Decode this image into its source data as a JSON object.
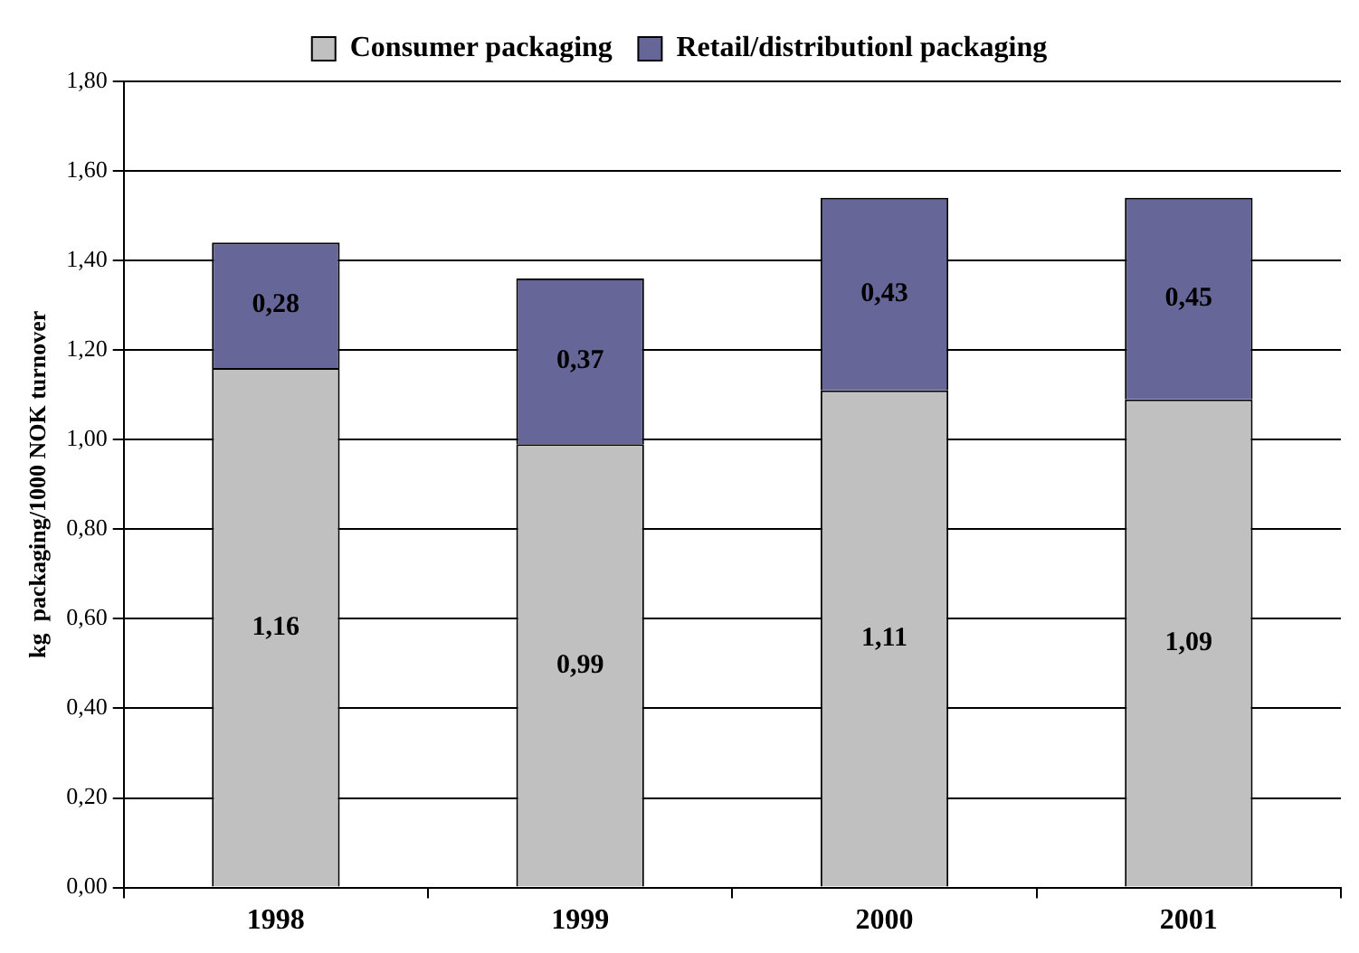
{
  "chart_data": {
    "type": "bar",
    "stacked": true,
    "ylabel": "kg  packaging/1000 NOK turnover",
    "categories": [
      "1998",
      "1999",
      "2000",
      "2001"
    ],
    "series": [
      {
        "name": "Consumer packaging",
        "color": "#c0c0c0",
        "values": [
          1.16,
          0.99,
          1.11,
          1.09
        ],
        "value_labels": [
          "1,16",
          "0,99",
          "1,11",
          "1,09"
        ]
      },
      {
        "name": "Retail/distributionl packaging",
        "color": "#666699",
        "values": [
          0.28,
          0.37,
          0.43,
          0.45
        ],
        "value_labels": [
          "0,28",
          "0,37",
          "0,43",
          "0,45"
        ]
      }
    ],
    "ylim": [
      0,
      1.8
    ],
    "yticks": [
      {
        "value": 0,
        "label": "0,00"
      },
      {
        "value": 0.2,
        "label": "0,20"
      },
      {
        "value": 0.4,
        "label": "0,40"
      },
      {
        "value": 0.6,
        "label": "0,60"
      },
      {
        "value": 0.8,
        "label": "0,80"
      },
      {
        "value": 1.0,
        "label": "1,00"
      },
      {
        "value": 1.2,
        "label": "1,20"
      },
      {
        "value": 1.4,
        "label": "1,40"
      },
      {
        "value": 1.6,
        "label": "1,60"
      },
      {
        "value": 1.8,
        "label": "1,80"
      }
    ],
    "grid": "y",
    "legend": "top"
  }
}
